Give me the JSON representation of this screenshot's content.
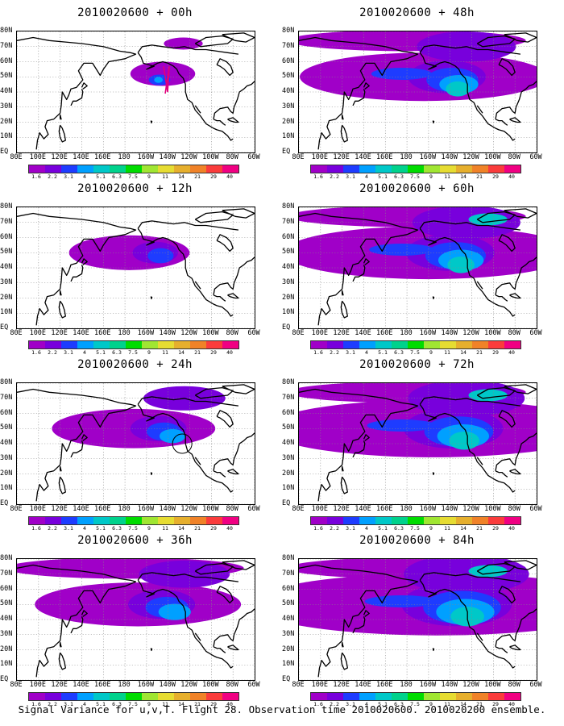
{
  "panels": [
    {
      "title": "2010020600 + 00h",
      "col": 0,
      "row": 0,
      "level": 0
    },
    {
      "title": "2010020600 + 48h",
      "col": 1,
      "row": 0,
      "level": 4
    },
    {
      "title": "2010020600 + 12h",
      "col": 0,
      "row": 1,
      "level": 1
    },
    {
      "title": "2010020600 + 60h",
      "col": 1,
      "row": 1,
      "level": 5
    },
    {
      "title": "2010020600 + 24h",
      "col": 0,
      "row": 2,
      "level": 2
    },
    {
      "title": "2010020600 + 72h",
      "col": 1,
      "row": 2,
      "level": 6
    },
    {
      "title": "2010020600 + 36h",
      "col": 0,
      "row": 3,
      "level": 3
    },
    {
      "title": "2010020600 + 84h",
      "col": 1,
      "row": 3,
      "level": 7
    }
  ],
  "lat_labels": [
    "80N",
    "70N",
    "60N",
    "50N",
    "40N",
    "30N",
    "20N",
    "10N",
    "EQ"
  ],
  "lon_labels": [
    "80E",
    "100E",
    "120E",
    "140E",
    "160E",
    "180",
    "160W",
    "140W",
    "120W",
    "100W",
    "80W",
    "60W"
  ],
  "colorbar": {
    "labels": [
      "1.6",
      "2.2",
      "3.1",
      "4",
      "5.1",
      "6.3",
      "7.5",
      "9",
      "11",
      "14",
      "21",
      "29",
      "40"
    ],
    "colors": [
      "#a000c8",
      "#7800dc",
      "#1e3cff",
      "#00a0ff",
      "#00c8c8",
      "#00d28c",
      "#00dc00",
      "#a0e632",
      "#e6dc32",
      "#e6af2d",
      "#f08228",
      "#fa3c3c",
      "#f00082"
    ]
  },
  "caption": "Signal Variance for u,v,T. Flight 28. Observation time 2010020600. 2010020200 ensemble."
}
